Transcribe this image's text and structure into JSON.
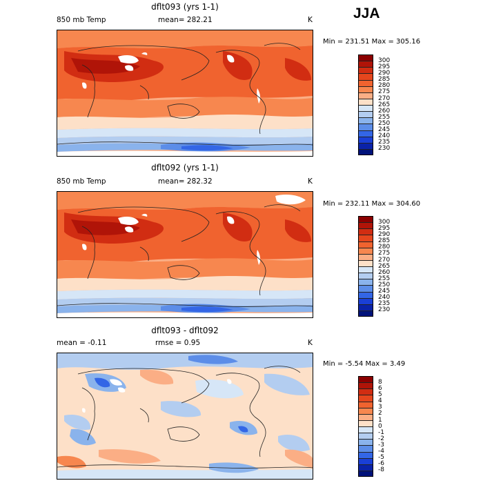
{
  "season": "JJA",
  "panels": [
    {
      "title": "dflt093 (yrs 1-1)",
      "variable": "850 mb Temp",
      "stat1": "mean= 282.21",
      "stat2": "",
      "units": "K",
      "range": "Min = 231.51  Max = 305.16",
      "scale": [
        "300",
        "295",
        "290",
        "285",
        "280",
        "275",
        "270",
        "265",
        "260",
        "255",
        "250",
        "245",
        "240",
        "235",
        "230"
      ],
      "colors": [
        "#8b0000",
        "#b01408",
        "#d12d12",
        "#e5461d",
        "#f0632f",
        "#f7874f",
        "#fbae85",
        "#fde0c8",
        "#d6e6f7",
        "#b3cdf0",
        "#8ab3ec",
        "#5c8de8",
        "#3366e6",
        "#1a3fd6",
        "#0a22a8",
        "#00127a"
      ]
    },
    {
      "title": "dflt092 (yrs 1-1)",
      "variable": "850 mb Temp",
      "stat1": "mean= 282.32",
      "stat2": "",
      "units": "K",
      "range": "Min = 232.11  Max = 304.60",
      "scale": [
        "300",
        "295",
        "290",
        "285",
        "280",
        "275",
        "270",
        "265",
        "260",
        "255",
        "250",
        "245",
        "240",
        "235",
        "230"
      ],
      "colors": [
        "#8b0000",
        "#b01408",
        "#d12d12",
        "#e5461d",
        "#f0632f",
        "#f7874f",
        "#fbae85",
        "#fde0c8",
        "#d6e6f7",
        "#b3cdf0",
        "#8ab3ec",
        "#5c8de8",
        "#3366e6",
        "#1a3fd6",
        "#0a22a8",
        "#00127a"
      ]
    },
    {
      "title": "dflt093 - dflt092",
      "variable": "",
      "stat1": "mean =   -0.11",
      "stat2": "rmse =    0.95",
      "units": "K",
      "range": "Min =  -5.54  Max =    3.49",
      "scale": [
        "8",
        "6",
        "5",
        "4",
        "3",
        "2",
        "1",
        "0",
        "-1",
        "-2",
        "-3",
        "-4",
        "-5",
        "-6",
        "-8"
      ],
      "colors": [
        "#8b0000",
        "#b01408",
        "#d12d12",
        "#e5461d",
        "#f0632f",
        "#f7874f",
        "#fbae85",
        "#fde0c8",
        "#d6e6f7",
        "#b3cdf0",
        "#8ab3ec",
        "#5c8de8",
        "#3366e6",
        "#1a3fd6",
        "#0a22a8",
        "#00127a"
      ]
    }
  ],
  "chart_data": [
    {
      "type": "heatmap",
      "title": "dflt093 (yrs 1-1)",
      "field": "850 mb Temp",
      "units": "K",
      "season": "JJA",
      "mean": 282.21,
      "min": 231.51,
      "max": 305.16,
      "contour_levels": [
        230,
        235,
        240,
        245,
        250,
        255,
        260,
        265,
        270,
        275,
        280,
        285,
        290,
        295,
        300
      ]
    },
    {
      "type": "heatmap",
      "title": "dflt092 (yrs 1-1)",
      "field": "850 mb Temp",
      "units": "K",
      "season": "JJA",
      "mean": 282.32,
      "min": 232.11,
      "max": 304.6,
      "contour_levels": [
        230,
        235,
        240,
        245,
        250,
        255,
        260,
        265,
        270,
        275,
        280,
        285,
        290,
        295,
        300
      ]
    },
    {
      "type": "heatmap",
      "title": "dflt093 - dflt092",
      "units": "K",
      "season": "JJA",
      "mean": -0.11,
      "rmse": 0.95,
      "min": -5.54,
      "max": 3.49,
      "contour_levels": [
        -8,
        -6,
        -5,
        -4,
        -3,
        -2,
        -1,
        0,
        1,
        2,
        3,
        4,
        5,
        6,
        8
      ]
    }
  ]
}
